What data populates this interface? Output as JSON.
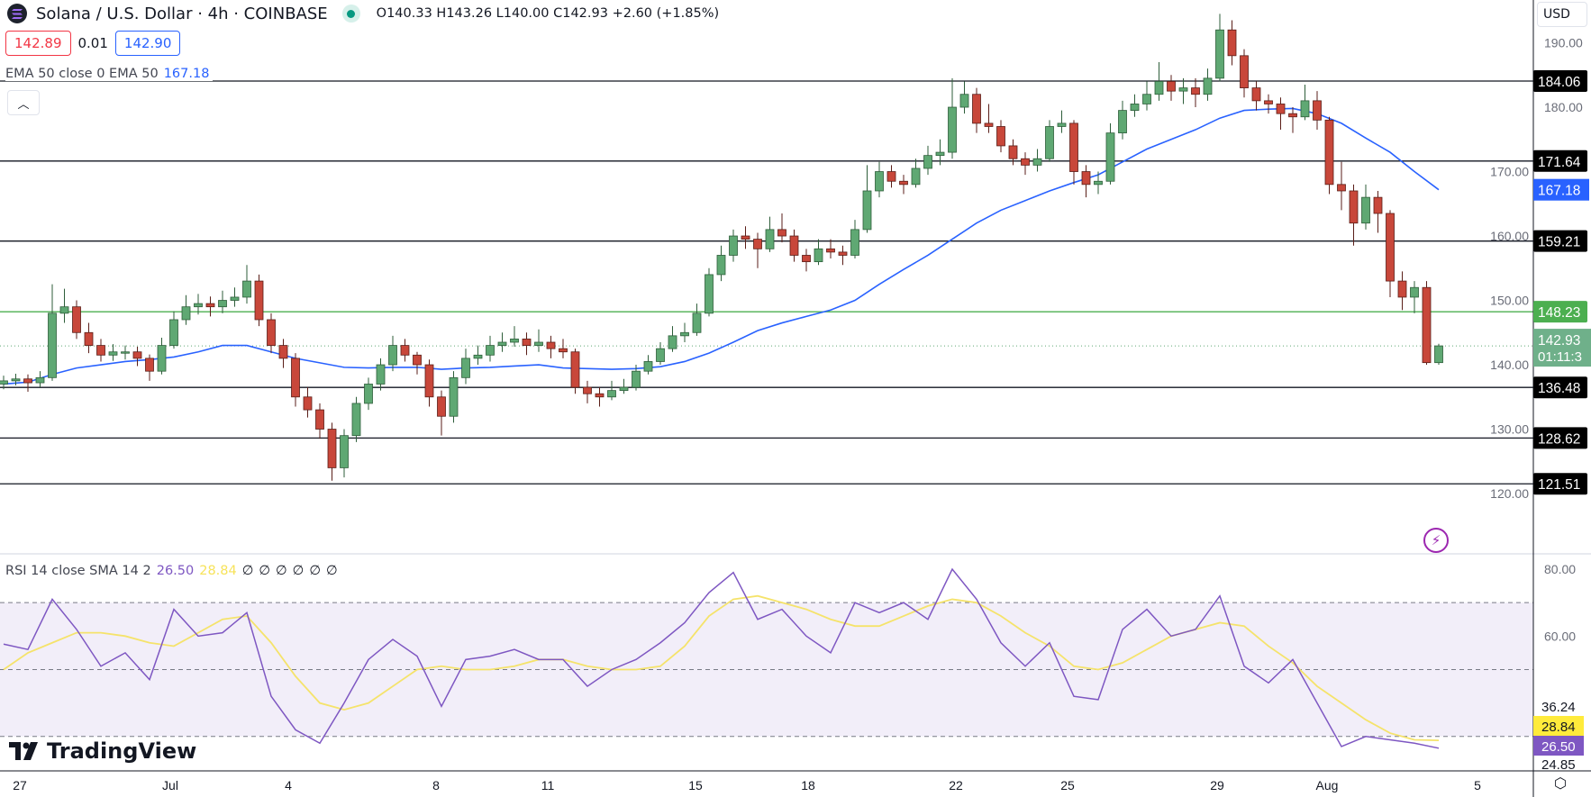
{
  "header": {
    "title": "Solana / U.S. Dollar · 4h · COINBASE",
    "open": "O140.33",
    "high": "H143.26",
    "low": "L140.00",
    "close": "C142.93",
    "change": "+2.60 (+1.85%)",
    "bid": "142.89",
    "spread": "0.01",
    "ask": "142.90"
  },
  "ema_legend": {
    "label": "EMA 50 close 0 EMA 50",
    "value": "167.18"
  },
  "rsi_legend": {
    "label": "RSI 14 close SMA 14 2",
    "rsi": "26.50",
    "sma": "28.84",
    "empty_values": [
      "∅",
      "∅",
      "∅",
      "∅",
      "∅",
      "∅"
    ]
  },
  "currency": "USD",
  "branding": "TradingView",
  "colors": {
    "up": "#5fa873",
    "down": "#c8473a",
    "ema": "#2962ff",
    "rsi": "#7e57c2",
    "rsi_sma": "#f5e36b",
    "support_line": "#131722",
    "highlight_line": "#4caf50"
  },
  "chart_data": [
    {
      "type": "candlestick",
      "title": "Solana / U.S. Dollar · 4h · COINBASE",
      "ylim": [
        115,
        196
      ],
      "y_ticks": [
        "190.00",
        "180.00",
        "170.00",
        "160.00",
        "150.00",
        "140.00",
        "130.00",
        "120.00"
      ],
      "x_ticks": [
        "27",
        "Jul",
        "4",
        "8",
        "11",
        "15",
        "18",
        "22",
        "25",
        "29",
        "Aug",
        "5"
      ],
      "grid": false,
      "candles_ohlc": [
        [
          137,
          138.3,
          136.2,
          137.5
        ],
        [
          137.5,
          138.6,
          136.8,
          137.8
        ],
        [
          137.8,
          138.5,
          135.8,
          137.2
        ],
        [
          137.2,
          139,
          136.5,
          138
        ],
        [
          138,
          152.5,
          137.5,
          148
        ],
        [
          148,
          151.8,
          146.5,
          149
        ],
        [
          149,
          150,
          144,
          145
        ],
        [
          145,
          146.5,
          141.8,
          143
        ],
        [
          143,
          144,
          140.5,
          141.5
        ],
        [
          141.5,
          143.2,
          140.6,
          142
        ],
        [
          142,
          143,
          140.8,
          142
        ],
        [
          142,
          142.8,
          139.8,
          141
        ],
        [
          141,
          141.6,
          137.5,
          139
        ],
        [
          139,
          144.2,
          138.5,
          143
        ],
        [
          143,
          148.3,
          142.5,
          147
        ],
        [
          147,
          150.8,
          146.2,
          149
        ],
        [
          149,
          151,
          147.8,
          149.5
        ],
        [
          149.5,
          150.6,
          147.5,
          149
        ],
        [
          149,
          151.5,
          148,
          150
        ],
        [
          150,
          152,
          149,
          150.5
        ],
        [
          150.5,
          155.5,
          149.5,
          153
        ],
        [
          153,
          154,
          146,
          147
        ],
        [
          147,
          148,
          141.8,
          143
        ],
        [
          143,
          144,
          139.5,
          141
        ],
        [
          141,
          141.8,
          133.5,
          135
        ],
        [
          135,
          136.5,
          131.8,
          133
        ],
        [
          133,
          134,
          128.5,
          130
        ],
        [
          130,
          131,
          122,
          124
        ],
        [
          124,
          130,
          122.5,
          129
        ],
        [
          129,
          135,
          128,
          134
        ],
        [
          134,
          138,
          133,
          137
        ],
        [
          137,
          141,
          136,
          140
        ],
        [
          140,
          144.5,
          139,
          143
        ],
        [
          143,
          144,
          140.5,
          141.5
        ],
        [
          141.5,
          142,
          138.5,
          140
        ],
        [
          140,
          140.8,
          133.5,
          135
        ],
        [
          135,
          136,
          129,
          132
        ],
        [
          132,
          139,
          131,
          138
        ],
        [
          138,
          142.5,
          137,
          141
        ],
        [
          141,
          143,
          140,
          141.5
        ],
        [
          141.5,
          144.5,
          140.5,
          143
        ],
        [
          143,
          145,
          142,
          143.5
        ],
        [
          143.5,
          146,
          142.8,
          144
        ],
        [
          144,
          145,
          141.5,
          143
        ],
        [
          143,
          145.5,
          142,
          143.5
        ],
        [
          143.5,
          144.5,
          141,
          142.5
        ],
        [
          142.5,
          144,
          141,
          142
        ],
        [
          142,
          142.5,
          135.5,
          136.5
        ],
        [
          136.5,
          137.5,
          134,
          135.5
        ],
        [
          135.5,
          136.5,
          133.5,
          135
        ],
        [
          135,
          137.5,
          134.5,
          136
        ],
        [
          136,
          137.8,
          135.5,
          136.5
        ],
        [
          136.5,
          140,
          136,
          139
        ],
        [
          139,
          141.5,
          138.5,
          140.5
        ],
        [
          140.5,
          143.5,
          140,
          142.5
        ],
        [
          142.5,
          146,
          142,
          144.5
        ],
        [
          144.5,
          146.5,
          143.5,
          145
        ],
        [
          145,
          149.5,
          144.5,
          148
        ],
        [
          148,
          155,
          147.5,
          154
        ],
        [
          154,
          158.5,
          153,
          157
        ],
        [
          157,
          161,
          156,
          160
        ],
        [
          160,
          161.5,
          158,
          159.5
        ],
        [
          159.5,
          160.5,
          155,
          158
        ],
        [
          158,
          163,
          157.5,
          161
        ],
        [
          161,
          163.5,
          159,
          160
        ],
        [
          160,
          161,
          156,
          157
        ],
        [
          157,
          158,
          154.5,
          156
        ],
        [
          156,
          159.5,
          155.5,
          158
        ],
        [
          158,
          159.5,
          156.5,
          157.5
        ],
        [
          157.5,
          158.5,
          155.5,
          157
        ],
        [
          157,
          162.5,
          156.5,
          161
        ],
        [
          161,
          171,
          160.5,
          167
        ],
        [
          167,
          171.5,
          166,
          170
        ],
        [
          170,
          171,
          167.5,
          168.5
        ],
        [
          168.5,
          169.5,
          166.5,
          168
        ],
        [
          168,
          172,
          167.5,
          170.5
        ],
        [
          170.5,
          174,
          169.5,
          172.5
        ],
        [
          172.5,
          175,
          171,
          173
        ],
        [
          173,
          184.5,
          172,
          180
        ],
        [
          180,
          184,
          179,
          182
        ],
        [
          182,
          183,
          176,
          177.5
        ],
        [
          177.5,
          180.5,
          176,
          177
        ],
        [
          177,
          178,
          173,
          174
        ],
        [
          174,
          175,
          171,
          172
        ],
        [
          172,
          173,
          169.5,
          171
        ],
        [
          171,
          173.5,
          170,
          172
        ],
        [
          172,
          178,
          171.5,
          177
        ],
        [
          177,
          179.5,
          176,
          177.5
        ],
        [
          177.5,
          178,
          168,
          170
        ],
        [
          170,
          171,
          166,
          168
        ],
        [
          168,
          170,
          166.5,
          168.5
        ],
        [
          168.5,
          177.5,
          168,
          176
        ],
        [
          176,
          181,
          175,
          179.5
        ],
        [
          179.5,
          182,
          178.5,
          180.5
        ],
        [
          180.5,
          184,
          179.5,
          182
        ],
        [
          182,
          187,
          181,
          184
        ],
        [
          184,
          185,
          181,
          182.5
        ],
        [
          182.5,
          184.5,
          180.5,
          183
        ],
        [
          183,
          184.5,
          180,
          182
        ],
        [
          182,
          186,
          181,
          184.5
        ],
        [
          184.5,
          194.5,
          184,
          192
        ],
        [
          192,
          193.5,
          186.5,
          188
        ],
        [
          188,
          189,
          181.5,
          183
        ],
        [
          183,
          184,
          179.5,
          181
        ],
        [
          181,
          182,
          179,
          180.5
        ],
        [
          180.5,
          181.5,
          176.5,
          179
        ],
        [
          179,
          180,
          176,
          178.5
        ],
        [
          178.5,
          183.5,
          178,
          181
        ],
        [
          181,
          182.5,
          176.5,
          178
        ],
        [
          178,
          178.5,
          166.5,
          168
        ],
        [
          168,
          171.5,
          164,
          167
        ],
        [
          167,
          168,
          158.5,
          162
        ],
        [
          162,
          168,
          161,
          166
        ],
        [
          166,
          167,
          160.5,
          163.5
        ],
        [
          163.5,
          164,
          150.5,
          153
        ],
        [
          153,
          154.5,
          148.5,
          150.5
        ],
        [
          150.5,
          153,
          148,
          152
        ],
        [
          152,
          153,
          140,
          140.33
        ],
        [
          140.33,
          143.26,
          140.0,
          142.93
        ]
      ],
      "ema50": [
        137,
        137.3,
        138.5,
        139.5,
        140,
        140.5,
        140.8,
        141.2,
        142,
        143,
        143,
        142,
        141,
        140.3,
        139.6,
        139.5,
        139.6,
        139.6,
        139.3,
        139.5,
        139.6,
        139.8,
        140,
        139.5,
        139.4,
        139.3,
        139.4,
        139.7,
        140.5,
        141.8,
        143.5,
        145.3,
        146.5,
        147.5,
        148.5,
        150,
        152.5,
        154.8,
        157,
        159.5,
        162,
        164,
        165.5,
        167,
        168.3,
        169.5,
        171.5,
        173.5,
        175,
        176.5,
        178.3,
        179.5,
        179.7,
        179.8,
        179,
        177.5,
        175.2,
        173,
        170,
        167.18
      ],
      "horizontal_levels": [
        {
          "value": "184.06",
          "color": "#131722"
        },
        {
          "value": "171.64",
          "color": "#131722"
        },
        {
          "value": "159.21",
          "color": "#131722"
        },
        {
          "value": "148.23",
          "color": "#4caf50"
        },
        {
          "value": "136.48",
          "color": "#131722"
        },
        {
          "value": "128.62",
          "color": "#131722"
        },
        {
          "value": "121.51",
          "color": "#131722"
        }
      ],
      "ema_last_label": "167.18",
      "last_price": "142.93",
      "countdown": "01:11:3"
    },
    {
      "type": "line",
      "title": "RSI 14 close SMA 14 2",
      "ylim": [
        20,
        84
      ],
      "y_ticks": [
        "80.00",
        "60.00"
      ],
      "band": [
        30,
        70
      ],
      "midline": 50,
      "series": [
        {
          "name": "RSI",
          "values": [
            57.6,
            56,
            71,
            62,
            51,
            55,
            47,
            68,
            60,
            61,
            67,
            42,
            32,
            28,
            40,
            53,
            59,
            54,
            39,
            53,
            54,
            56,
            53,
            53,
            45,
            50,
            53,
            58,
            64,
            73,
            79,
            65,
            68,
            60,
            55,
            70,
            67,
            70,
            65,
            80,
            71,
            58,
            51,
            58,
            42,
            41,
            62,
            68,
            60,
            62,
            72,
            51,
            46,
            53,
            40,
            27,
            30,
            29,
            28,
            26.5
          ]
        },
        {
          "name": "SMA",
          "values": [
            50,
            55,
            58,
            61,
            61,
            60,
            58,
            57,
            61,
            65,
            66,
            58,
            48,
            40,
            38,
            40,
            45,
            50,
            51,
            50,
            50,
            51,
            53,
            53,
            51,
            50,
            50,
            51,
            57,
            66,
            71,
            72,
            70,
            68,
            65,
            63,
            63,
            66,
            69,
            71,
            70,
            66,
            61,
            57,
            51,
            50,
            52,
            56,
            60,
            62,
            64,
            63,
            57,
            52,
            45,
            40,
            35,
            31,
            29,
            28.84
          ]
        }
      ],
      "axis_labels": {
        "high": "36.24",
        "sma": "28.84",
        "rsi": "26.50",
        "low": "24.85"
      }
    }
  ]
}
